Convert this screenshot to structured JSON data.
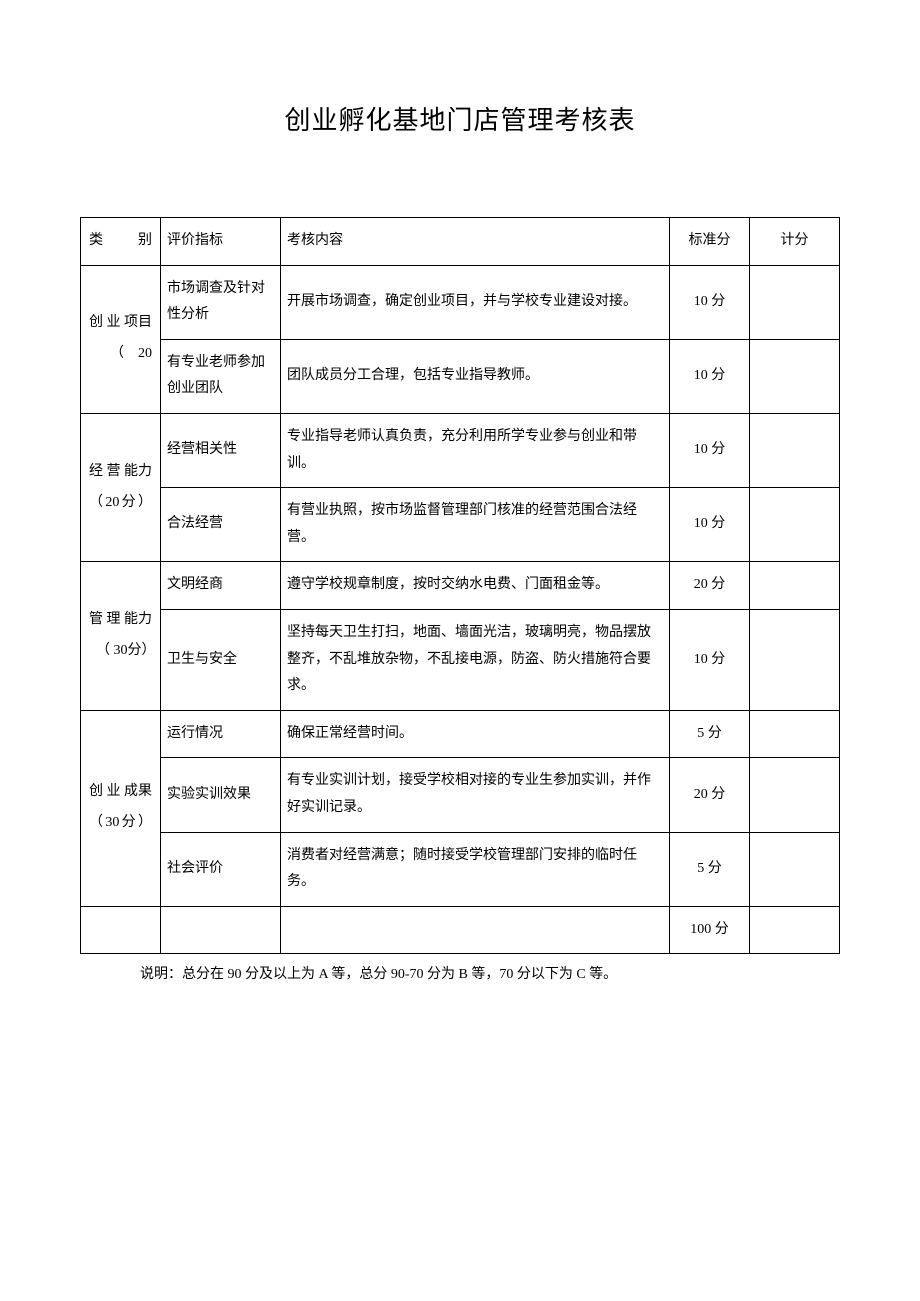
{
  "title": "创业孵化基地门店管理考核表",
  "headers": {
    "category": "类别",
    "indicator": "评价指标",
    "content": "考核内容",
    "score": "标准分",
    "grade": "计分"
  },
  "categories": [
    {
      "name": "创 业 项目\n　（20",
      "rows": [
        {
          "indicator": "市场调查及针对性分析",
          "content": "开展市场调查，确定创业项目，并与学校专业建设对接。",
          "score": "10 分"
        },
        {
          "indicator": "有专业老师参加创业团队",
          "content": "团队成员分工合理，包括专业指导教师。",
          "score": "10 分"
        }
      ]
    },
    {
      "name": "经 营 能力（20分）",
      "rows": [
        {
          "indicator": "经营相关性",
          "content": "专业指导老师认真负责，充分利用所学专业参与创业和带训。",
          "score": "10 分"
        },
        {
          "indicator": "合法经营",
          "content": "有营业执照，按市场监督管理部门核准的经营范围合法经营。",
          "score": "10 分"
        }
      ]
    },
    {
      "name": "管 理 能力\n　（ 30分）",
      "rows": [
        {
          "indicator": "文明经商",
          "content": "遵守学校规章制度，按时交纳水电费、门面租金等。",
          "score": "20 分"
        },
        {
          "indicator": "卫生与安全",
          "content": "坚持每天卫生打扫，地面、墙面光洁，玻璃明亮，物品摆放整齐，不乱堆放杂物，不乱接电源，防盗、防火措施符合要求。",
          "score": "10 分"
        }
      ]
    },
    {
      "name": "创 业 成果（30分）",
      "rows": [
        {
          "indicator": "运行情况",
          "content": "确保正常经营时间。",
          "score": "5 分"
        },
        {
          "indicator": "实验实训效果",
          "content": "有专业实训计划，接受学校相对接的专业生参加实训，并作好实训记录。",
          "score": "20 分"
        },
        {
          "indicator": "社会评价",
          "content": "消费者对经营满意；随时接受学校管理部门安排的临时任务。",
          "score": "5 分"
        }
      ]
    }
  ],
  "total": {
    "score": "100 分"
  },
  "footnote": "说明：总分在 90 分及以上为 A 等，总分 90-70 分为 B 等，70 分以下为 C 等。"
}
